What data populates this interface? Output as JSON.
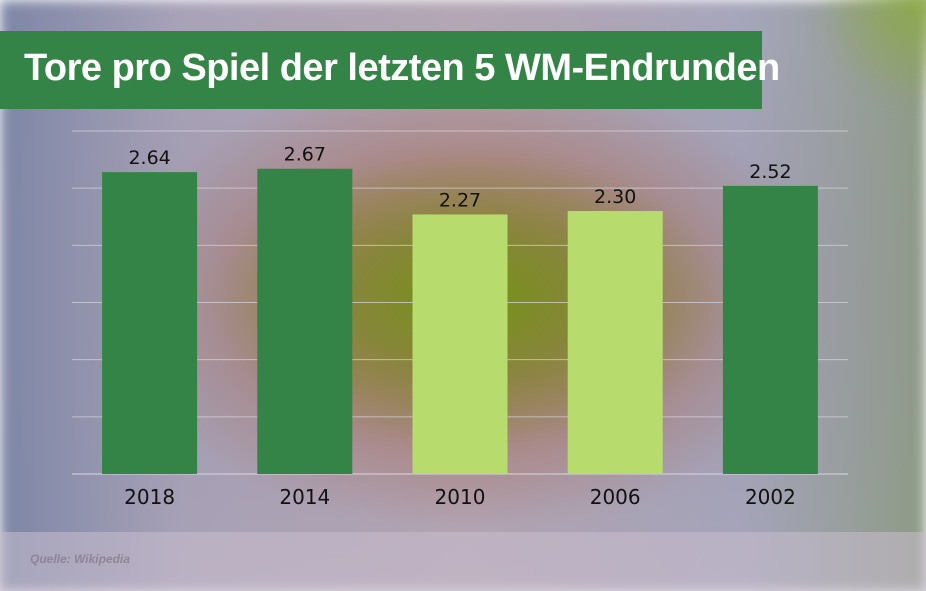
{
  "title": "Tore pro Spiel der letzten 5 WM-Endrunden",
  "source": "Quelle: Wikipedia",
  "colors": {
    "dark_green": "#338446",
    "light_green": "#b7db6d",
    "gridline": "#d9d6df"
  },
  "chart_data": {
    "type": "bar",
    "title": "Tore pro Spiel der letzten 5 WM-Endrunden",
    "xlabel": "",
    "ylabel": "",
    "ylim": [
      0,
      3
    ],
    "grid": true,
    "categories": [
      "2018",
      "2014",
      "2010",
      "2006",
      "2002"
    ],
    "values": [
      2.64,
      2.67,
      2.27,
      2.3,
      2.52
    ],
    "data_labels": [
      "2.64",
      "2.67",
      "2.27",
      "2.30",
      "2.52"
    ],
    "bar_colors": [
      "#338446",
      "#338446",
      "#b7db6d",
      "#b7db6d",
      "#338446"
    ]
  }
}
